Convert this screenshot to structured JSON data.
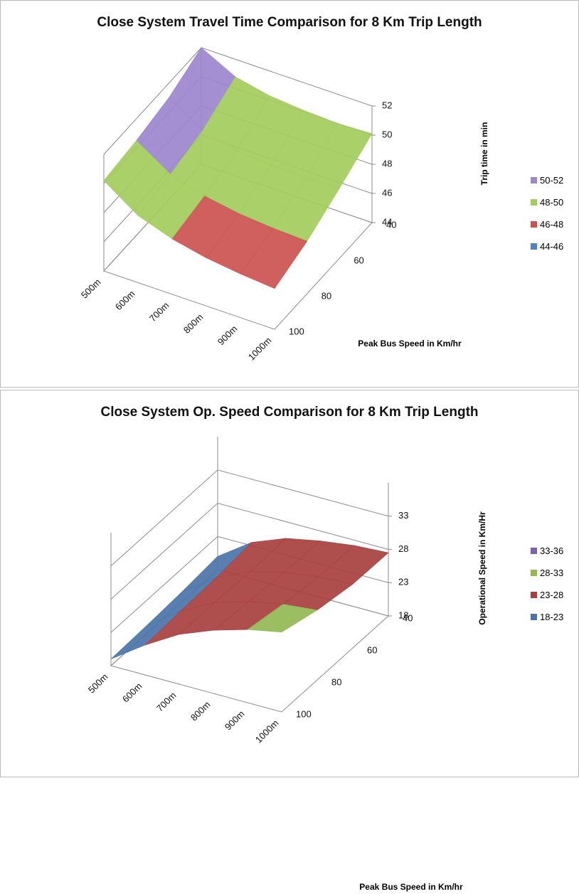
{
  "chart_data": [
    {
      "type": "surface",
      "title": "Close System Travel Time Comparison for 8 Km Trip Length",
      "categories": [
        "500m",
        "600m",
        "700m",
        "800m",
        "900m",
        "1000m"
      ],
      "depth": [
        40,
        60,
        80,
        100
      ],
      "depth_label": "Peak Bus Speed in Km/hr",
      "z_label": "Trip time in min",
      "zlim": [
        44,
        52
      ],
      "zticks": [
        44,
        46,
        48,
        50,
        52
      ],
      "values": [
        [
          52,
          50.8,
          50.3,
          50.1,
          50.0,
          50.1
        ],
        [
          51,
          49.6,
          49.0,
          48.8,
          48.7,
          48.8
        ],
        [
          50.5,
          49.0,
          48.3,
          47.9,
          47.7,
          47.6
        ],
        [
          50.2,
          48.6,
          47.8,
          47.3,
          47.0,
          46.8
        ]
      ],
      "series": [
        {
          "name": "50-52",
          "color": "#9d86cf"
        },
        {
          "name": "48-50",
          "color": "#a3cc5c"
        },
        {
          "name": "46-48",
          "color": "#cc5250"
        },
        {
          "name": "44-46",
          "color": "#4f81bd"
        }
      ]
    },
    {
      "type": "surface",
      "title": "Close System Op. Speed Comparison for 8 Km Trip Length",
      "categories": [
        "500m",
        "600m",
        "700m",
        "800m",
        "900m",
        "1000m"
      ],
      "depth": [
        40,
        60,
        80,
        100
      ],
      "depth_label": "Peak Bus Speed in Km/hr",
      "z_label": "Operational Speed in Km/Hr",
      "zlim": [
        18,
        38
      ],
      "zticks": [
        18,
        23,
        28,
        33
      ],
      "values": [
        [
          20,
          23.5,
          25.5,
          26.5,
          27.2,
          27.5
        ],
        [
          19.5,
          23,
          25.3,
          26.6,
          27.3,
          27.6
        ],
        [
          19.2,
          22.8,
          25.5,
          27.0,
          28.0,
          28.5
        ],
        [
          19.0,
          22.5,
          25.5,
          27.5,
          29.0,
          30.0
        ]
      ],
      "series": [
        {
          "name": "33-36",
          "color": "#7c62a8"
        },
        {
          "name": "28-33",
          "color": "#93b852"
        },
        {
          "name": "23-28",
          "color": "#a8403e"
        },
        {
          "name": "18-23",
          "color": "#4a74a8"
        }
      ]
    }
  ]
}
